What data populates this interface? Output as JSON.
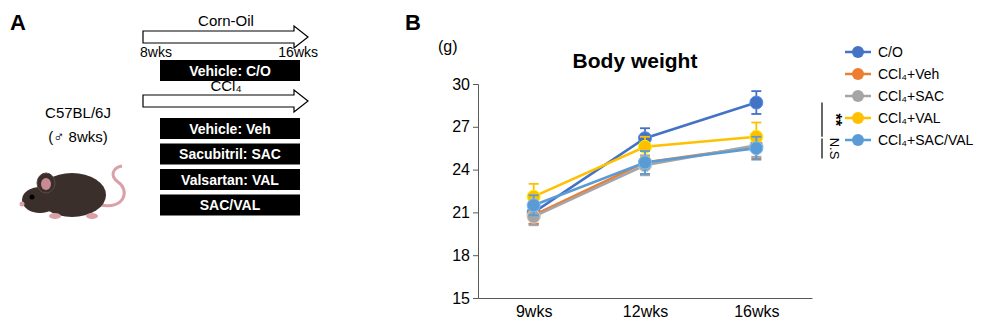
{
  "chart_data": {
    "type": "line",
    "panel_label": "B",
    "title": "Body weight",
    "y_label": "(g)",
    "categories": [
      "9wks",
      "12wks",
      "16wks"
    ],
    "ylim": [
      15,
      30
    ],
    "yticks": [
      15,
      18,
      21,
      24,
      27,
      30
    ],
    "legend": "right",
    "marker": "circle",
    "series": [
      {
        "name": "C/O",
        "color": "#4472c4",
        "values": [
          21.0,
          26.2,
          28.7
        ],
        "errors": [
          0.8,
          0.7,
          0.8
        ]
      },
      {
        "name": "CCl₄+Veh",
        "color": "#ed7d31",
        "values": [
          20.8,
          24.5,
          25.6
        ],
        "errors": [
          0.6,
          0.8,
          0.8
        ]
      },
      {
        "name": "CCl₄+SAC",
        "color": "#a5a5a5",
        "values": [
          20.7,
          24.3,
          25.7
        ],
        "errors": [
          0.6,
          0.7,
          0.8
        ]
      },
      {
        "name": "CCl₄+VAL",
        "color": "#ffc000",
        "values": [
          22.1,
          25.6,
          26.3
        ],
        "errors": [
          0.9,
          0.7,
          1.0
        ]
      },
      {
        "name": "CCl₄+SAC/VAL",
        "color": "#5b9bd5",
        "values": [
          21.5,
          24.5,
          25.5
        ],
        "errors": [
          0.7,
          0.8,
          0.8
        ]
      }
    ],
    "annotations": [
      "**",
      "N.S"
    ]
  },
  "diagram": {
    "panel_label": "A",
    "strain": "C57BL/6J",
    "animal": "(♂ 8wks)",
    "arms": [
      {
        "label": "Corn-Oil",
        "start": "8wks",
        "end": "16wks",
        "groups": [
          "Vehicle: C/O"
        ]
      },
      {
        "label": "CCl₄",
        "groups": [
          "Vehicle: Veh",
          "Sacubitril: SAC",
          "Valsartan: VAL",
          "SAC/VAL"
        ]
      }
    ]
  }
}
